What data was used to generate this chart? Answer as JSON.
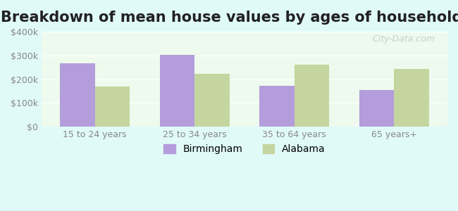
{
  "title": "Breakdown of mean house values by ages of householders",
  "categories": [
    "15 to 24 years",
    "25 to 34 years",
    "35 to 64 years",
    "65 years+"
  ],
  "birmingham_values": [
    268000,
    303000,
    172000,
    155000
  ],
  "alabama_values": [
    168000,
    222000,
    262000,
    242000
  ],
  "birmingham_color": "#b39ddb",
  "alabama_color": "#c5d5a0",
  "ylim": [
    0,
    400000
  ],
  "yticks": [
    0,
    100000,
    200000,
    300000,
    400000
  ],
  "ytick_labels": [
    "$0",
    "$100k",
    "$200k",
    "$300k",
    "$400k"
  ],
  "bar_width": 0.35,
  "background_color": "#e0faf8",
  "plot_bg_start": "#f0fff0",
  "plot_bg_end": "#e8f8f0",
  "legend_birmingham": "Birmingham",
  "legend_alabama": "Alabama",
  "watermark": "City-Data.com",
  "title_fontsize": 15,
  "label_fontsize": 9,
  "tick_fontsize": 9,
  "legend_fontsize": 10
}
